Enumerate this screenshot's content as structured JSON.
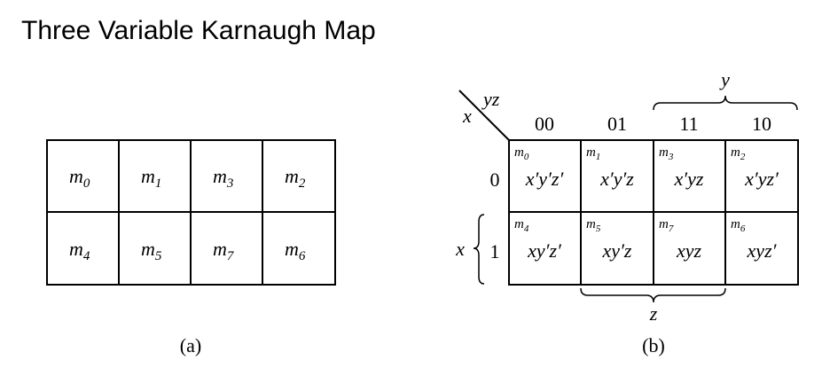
{
  "title": "Three Variable Karnaugh Map",
  "map_a": {
    "caption": "(a)",
    "cells": [
      {
        "m": "m",
        "sub": "0"
      },
      {
        "m": "m",
        "sub": "1"
      },
      {
        "m": "m",
        "sub": "3"
      },
      {
        "m": "m",
        "sub": "2"
      },
      {
        "m": "m",
        "sub": "4"
      },
      {
        "m": "m",
        "sub": "5"
      },
      {
        "m": "m",
        "sub": "7"
      },
      {
        "m": "m",
        "sub": "6"
      }
    ]
  },
  "map_b": {
    "caption": "(b)",
    "corner_col_var": "yz",
    "corner_row_var": "x",
    "col_headers": [
      "00",
      "01",
      "11",
      "10"
    ],
    "row_headers": [
      "0",
      "1"
    ],
    "y_brace_label": "y",
    "z_brace_label": "z",
    "x_brace_label": "x",
    "cells": [
      {
        "m": "m",
        "sub": "0",
        "term": "x′y′z′"
      },
      {
        "m": "m",
        "sub": "1",
        "term": "x′y′z"
      },
      {
        "m": "m",
        "sub": "3",
        "term": "x′yz"
      },
      {
        "m": "m",
        "sub": "2",
        "term": "x′yz′"
      },
      {
        "m": "m",
        "sub": "4",
        "term": "xy′z′"
      },
      {
        "m": "m",
        "sub": "5",
        "term": "xy′z"
      },
      {
        "m": "m",
        "sub": "7",
        "term": "xyz"
      },
      {
        "m": "m",
        "sub": "6",
        "term": "xyz′"
      }
    ]
  }
}
